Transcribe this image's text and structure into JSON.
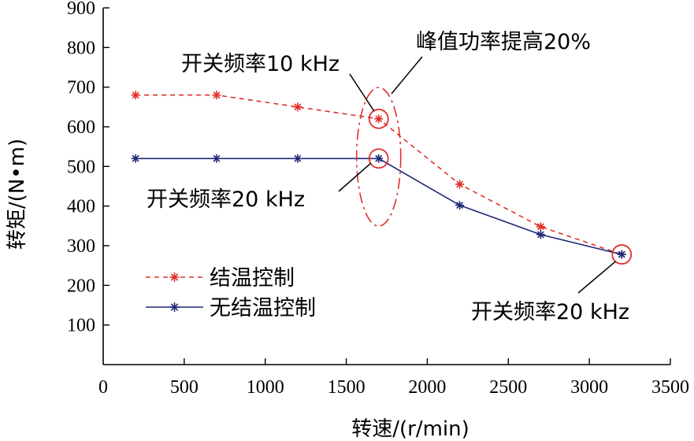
{
  "chart_data": {
    "type": "line",
    "xlabel": "转速/(r/min)",
    "ylabel": "转矩/(N•m)",
    "xlim": [
      0,
      3500
    ],
    "ylim": [
      0,
      900
    ],
    "xticks": [
      0,
      500,
      1000,
      1500,
      2000,
      2500,
      3000,
      3500
    ],
    "yticks": [
      100,
      200,
      300,
      400,
      500,
      600,
      700,
      800,
      900
    ],
    "grid": false,
    "legend_position": "bottom-left",
    "series": [
      {
        "name": "结温控制",
        "color": "#e0302a",
        "line_style": "dashed",
        "marker": "asterisk",
        "x": [
          200,
          700,
          1200,
          1700,
          2200,
          2700,
          3200
        ],
        "y": [
          680,
          680,
          650,
          620,
          455,
          348,
          278
        ]
      },
      {
        "name": "无结温控制",
        "color": "#1f2a7a",
        "line_style": "solid",
        "marker": "asterisk",
        "x": [
          200,
          700,
          1200,
          1700,
          2200,
          2700,
          3200
        ],
        "y": [
          520,
          520,
          520,
          520,
          402,
          328,
          278
        ]
      }
    ],
    "annotations": [
      {
        "text": "开关频率10 kHz",
        "x": 1700,
        "y": 620
      },
      {
        "text": "峰值功率提高20%",
        "x": 1700,
        "y": 570
      },
      {
        "text": "开关频率20 kHz",
        "x": 1700,
        "y": 520
      },
      {
        "text": "开关频率20 kHz",
        "x": 3200,
        "y": 278
      }
    ]
  }
}
